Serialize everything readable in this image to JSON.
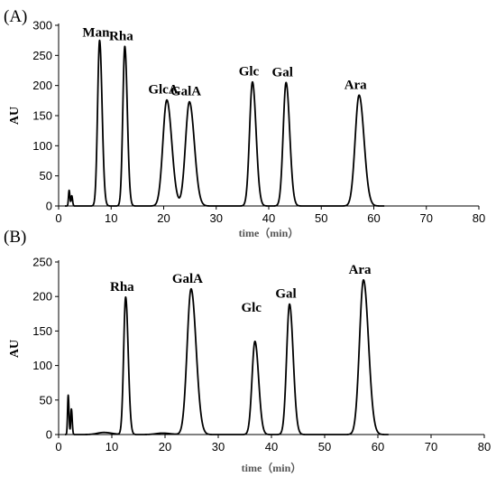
{
  "chart_data": [
    {
      "type": "line",
      "panel_label": "(A)",
      "xlabel": "time（min）",
      "ylabel": "AU",
      "xlim": [
        0,
        80
      ],
      "ylim": [
        0,
        300
      ],
      "xticks": [
        0,
        10,
        20,
        30,
        40,
        50,
        60,
        70,
        80
      ],
      "yticks": [
        0,
        50,
        100,
        150,
        200,
        250,
        300
      ],
      "peaks": [
        {
          "label": "Man",
          "x": 7.8,
          "y": 275
        },
        {
          "label": "Rha",
          "x": 12.6,
          "y": 265
        },
        {
          "label": "GlcA",
          "x": 20.6,
          "y": 176
        },
        {
          "label": "GalA",
          "x": 24.9,
          "y": 173
        },
        {
          "label": "Glc",
          "x": 36.9,
          "y": 206
        },
        {
          "label": "Gal",
          "x": 43.3,
          "y": 205
        },
        {
          "label": "Ara",
          "x": 57.2,
          "y": 184
        }
      ],
      "minor_peaks": [
        {
          "x": 2.0,
          "y": 26
        },
        {
          "x": 2.5,
          "y": 17
        }
      ]
    },
    {
      "type": "line",
      "panel_label": "(B)",
      "xlabel": "time（min）",
      "ylabel": "AU",
      "xlim": [
        0,
        80
      ],
      "ylim": [
        0,
        250
      ],
      "xticks": [
        0,
        10,
        20,
        30,
        40,
        50,
        60,
        70,
        80
      ],
      "yticks": [
        0,
        50,
        100,
        150,
        200,
        250
      ],
      "peaks": [
        {
          "label": "Rha",
          "x": 12.6,
          "y": 199
        },
        {
          "label": "GalA",
          "x": 24.9,
          "y": 211
        },
        {
          "label": "Glc",
          "x": 36.9,
          "y": 135
        },
        {
          "label": "Gal",
          "x": 43.4,
          "y": 189
        },
        {
          "label": "Ara",
          "x": 57.3,
          "y": 224
        }
      ],
      "minor_peaks": [
        {
          "x": 1.8,
          "y": 57
        },
        {
          "x": 2.4,
          "y": 37
        },
        {
          "x": 8.5,
          "y": 3
        },
        {
          "x": 19.5,
          "y": 2
        }
      ]
    }
  ]
}
